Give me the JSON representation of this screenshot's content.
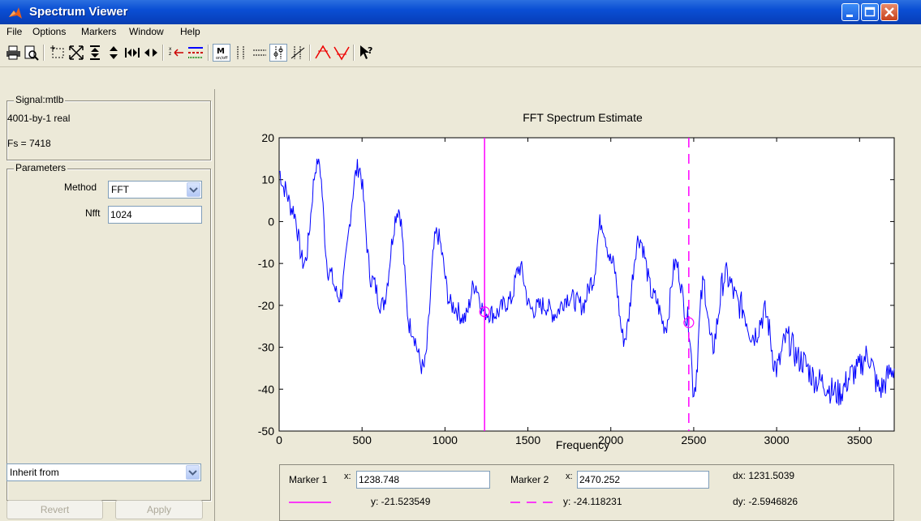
{
  "window": {
    "title": "Spectrum Viewer"
  },
  "menu": [
    "File",
    "Options",
    "Markers",
    "Window",
    "Help"
  ],
  "toolbar_icons": [
    "print-icon",
    "print-preview-icon",
    "zoom-box-icon",
    "zoom-fit-icon",
    "zoom-y-in-icon",
    "zoom-y-out-icon",
    "zoom-x-in-icon",
    "zoom-x-out-icon",
    "legend-icon",
    "line-style-icon",
    "markers-onoff-icon",
    "vertical-markers-icon",
    "horizontal-markers-icon",
    "track-markers-icon",
    "slope-markers-icon",
    "peak-markers-icon",
    "valley-markers-icon",
    "whats-this-icon"
  ],
  "signal": {
    "group_title": "Signal:mtlb",
    "size": "4001-by-1 real",
    "fs": "Fs = 7418"
  },
  "parameters": {
    "group_title": "Parameters",
    "method_label": "Method",
    "method_value": "FFT",
    "nfft_label": "Nfft",
    "nfft_value": "1024"
  },
  "inherit": {
    "value": "Inherit from"
  },
  "buttons": {
    "revert": "Revert",
    "apply": "Apply"
  },
  "markers": {
    "m1_label": "Marker 1",
    "m1_x_label": "x:",
    "m1_x": "1238.748",
    "m1_y": "y: -21.523549",
    "m2_label": "Marker 2",
    "m2_x_label": "x:",
    "m2_x": "2470.252",
    "m2_y": "y: -24.118231",
    "dx": "dx: 1231.5039",
    "dy": "dy: -2.5946826"
  },
  "colors": {
    "line": "#0000ff",
    "marker": "#ff00ff",
    "titlebar": "#0a4fd4"
  },
  "chart_data": {
    "type": "line",
    "title": "FFT Spectrum Estimate",
    "xlabel": "Frequency",
    "ylabel": "",
    "xlim": [
      0,
      3709
    ],
    "ylim": [
      -50,
      20
    ],
    "xticks": [
      0,
      500,
      1000,
      1500,
      2000,
      2500,
      3000,
      3500
    ],
    "yticks": [
      20,
      10,
      0,
      -10,
      -20,
      -30,
      -40,
      -50
    ],
    "grid": false,
    "markers": [
      {
        "x": 1238.748,
        "y": -21.523549,
        "style": "solid"
      },
      {
        "x": 2470.252,
        "y": -24.118231,
        "style": "dashed"
      }
    ],
    "peaks": [
      [
        0,
        12
      ],
      [
        30,
        8
      ],
      [
        80,
        3
      ],
      [
        150,
        -10
      ],
      [
        235,
        15
      ],
      [
        300,
        -12
      ],
      [
        360,
        -18
      ],
      [
        480,
        13
      ],
      [
        560,
        -14
      ],
      [
        620,
        -20
      ],
      [
        720,
        3
      ],
      [
        790,
        -25
      ],
      [
        870,
        -35
      ],
      [
        950,
        -3
      ],
      [
        1040,
        -20
      ],
      [
        1120,
        -23
      ],
      [
        1180,
        -15
      ],
      [
        1238,
        -21.5
      ],
      [
        1300,
        -22
      ],
      [
        1390,
        -19
      ],
      [
        1450,
        -11
      ],
      [
        1520,
        -21
      ],
      [
        1600,
        -20
      ],
      [
        1660,
        -22
      ],
      [
        1740,
        -18
      ],
      [
        1830,
        -20
      ],
      [
        1890,
        -14
      ],
      [
        1940,
        0
      ],
      [
        2010,
        -10
      ],
      [
        2080,
        -28
      ],
      [
        2170,
        -4
      ],
      [
        2260,
        -18
      ],
      [
        2330,
        -25
      ],
      [
        2390,
        -10
      ],
      [
        2470,
        -24
      ],
      [
        2500,
        -40
      ],
      [
        2560,
        -15
      ],
      [
        2610,
        -30
      ],
      [
        2690,
        -13
      ],
      [
        2780,
        -20
      ],
      [
        2860,
        -27
      ],
      [
        2930,
        -22
      ],
      [
        3000,
        -35
      ],
      [
        3060,
        -28
      ],
      [
        3140,
        -33
      ],
      [
        3250,
        -38
      ],
      [
        3370,
        -41
      ],
      [
        3470,
        -36
      ],
      [
        3550,
        -32
      ],
      [
        3620,
        -40
      ],
      [
        3709,
        -35
      ]
    ]
  }
}
